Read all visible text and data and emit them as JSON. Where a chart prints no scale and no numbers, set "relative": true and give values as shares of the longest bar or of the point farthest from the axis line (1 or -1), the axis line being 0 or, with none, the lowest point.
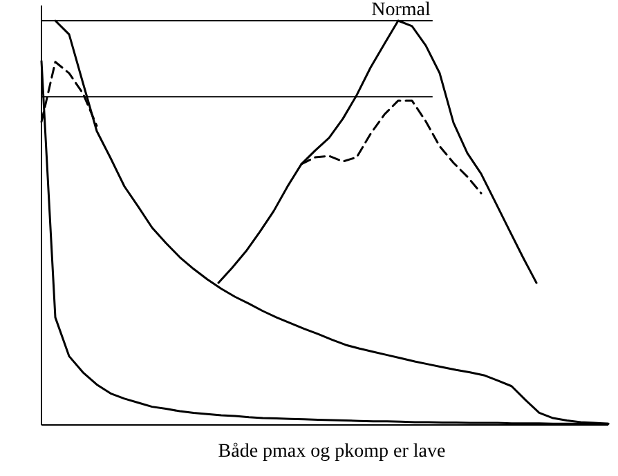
{
  "chart_data": [
    {
      "type": "line",
      "title": "Normal",
      "xlabel": "Både pmax og pkomp er lave",
      "relative": true,
      "marker": "none",
      "categories": [
        null,
        null,
        null,
        null,
        null,
        null,
        null,
        null,
        null,
        null,
        null,
        null,
        null,
        null,
        null,
        null,
        null,
        null,
        null,
        null,
        null,
        null,
        null,
        null,
        null,
        null,
        null,
        null,
        null,
        null,
        null,
        null,
        null,
        null,
        null,
        null,
        null,
        null,
        null,
        null,
        null,
        null
      ],
      "series": [
        {
          "color": "#000000",
          "line_style": "solid",
          "values": [
            null,
            1,
            0.966,
            0.846,
            0.727,
            0.66,
            0.59,
            0.54,
            0.488,
            0.45,
            0.415,
            0.386,
            0.36,
            0.337,
            0.317,
            0.3,
            0.282,
            0.266,
            0.252,
            0.238,
            0.225,
            0.211,
            0.198,
            0.189,
            0.181,
            0.173,
            0.165,
            0.157,
            0.15,
            0.143,
            0.136,
            0.13,
            0.123,
            0.11,
            0.096,
            0.062,
            0.03,
            0.017,
            0.011,
            0.007,
            0.005,
            0.003
          ]
        },
        {
          "color": "#000000",
          "line_style": "solid",
          "values": [
            0.9,
            0.266,
            0.17,
            0.13,
            0.1,
            0.078,
            0.065,
            0.055,
            0.045,
            0.04,
            0.034,
            0.03,
            0.027,
            0.024,
            0.022,
            0.019,
            0.017,
            0.016,
            0.015,
            0.014,
            0.013,
            0.012,
            0.011,
            0.01,
            0.009,
            0.009,
            0.008,
            0.007,
            0.007,
            0.006,
            0.006,
            0.005,
            0.005,
            0.005,
            0.004,
            0.004,
            0.004,
            0.003,
            0.003,
            0.003,
            0.003,
            0.003
          ]
        },
        {
          "color": "#000000",
          "line_style": "dashed",
          "values": [
            0.75,
            0.898,
            0.87,
            0.82,
            0.74,
            null,
            null,
            null,
            null,
            null,
            null,
            null,
            null,
            null,
            null,
            null,
            null,
            null,
            null,
            null,
            null,
            null,
            null,
            null,
            null,
            null,
            null,
            null,
            null,
            null,
            null,
            null,
            null,
            null,
            null,
            null,
            null,
            null,
            null,
            null,
            null,
            null
          ]
        }
      ],
      "ref_lines": [
        {
          "axis": "y",
          "value": 1,
          "color": "#000000"
        },
        {
          "axis": "y",
          "value": 0.812,
          "color": "#000000"
        }
      ]
    },
    {
      "type": "line",
      "relative": true,
      "categories": [
        null,
        null,
        null,
        null,
        null,
        null,
        null,
        null,
        null,
        null,
        null,
        null,
        null,
        null,
        null,
        null,
        null,
        null,
        null,
        null,
        null,
        null,
        null,
        null
      ],
      "series": [
        {
          "color": "#000000",
          "line_style": "solid",
          "values": [
            0,
            0.058,
            0.121,
            0.195,
            0.274,
            0.368,
            0.453,
            0.505,
            0.553,
            0.626,
            0.716,
            0.821,
            0.911,
            1,
            0.979,
            0.905,
            0.8,
            0.611,
            0.495,
            0.416,
            0.311,
            0.205,
            0.1,
            0
          ]
        },
        {
          "color": "#000000",
          "line_style": "dashed",
          "values": [
            null,
            null,
            null,
            null,
            null,
            null,
            0.453,
            0.479,
            0.484,
            0.463,
            0.479,
            0.568,
            0.642,
            0.695,
            0.695,
            0.616,
            0.521,
            0.458,
            0.405,
            0.342,
            null,
            null,
            null,
            null
          ]
        }
      ]
    }
  ]
}
